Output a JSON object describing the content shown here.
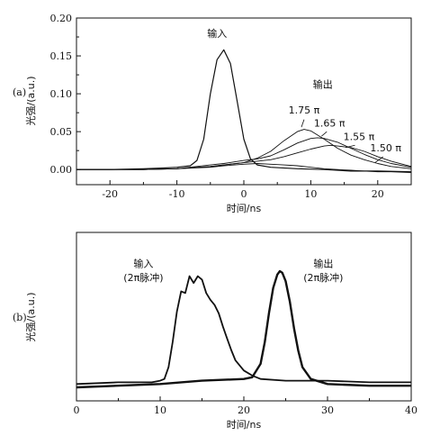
{
  "chart_data": [
    {
      "type": "line",
      "panel_label": "(a)",
      "xlabel": "时间/ns",
      "ylabel": "光强/(a.u.)",
      "xlim": [
        -25,
        25
      ],
      "ylim": [
        -0.02,
        0.2
      ],
      "xticks": [
        -20,
        -10,
        0,
        10,
        20
      ],
      "yticks": [
        0.0,
        0.05,
        0.1,
        0.15,
        0.2
      ],
      "ytick_labels": [
        "0.00",
        "0.05",
        "0.10",
        "0.15",
        "0.20"
      ],
      "grid": false,
      "annotations": [
        {
          "text": "输入",
          "x": -4.0,
          "y": 0.175
        },
        {
          "text": "输出",
          "x": 11.8,
          "y": 0.108
        },
        {
          "text": "1.75 π",
          "x": 9.0,
          "y": 0.074
        },
        {
          "text": "1.65 π",
          "x": 12.8,
          "y": 0.057
        },
        {
          "text": "1.55 π",
          "x": 17.2,
          "y": 0.039
        },
        {
          "text": "1.50 π",
          "x": 21.2,
          "y": 0.024
        }
      ],
      "series": [
        {
          "name": "输入",
          "x": [
            -25,
            -20,
            -15,
            -12,
            -10,
            -8,
            -7,
            -6,
            -5,
            -4,
            -3,
            -2,
            -1,
            0,
            1,
            2,
            4,
            8,
            12,
            16,
            20,
            25
          ],
          "y": [
            0.0,
            0.0,
            0.001,
            0.002,
            0.003,
            0.005,
            0.012,
            0.04,
            0.1,
            0.145,
            0.158,
            0.14,
            0.09,
            0.04,
            0.014,
            0.006,
            0.003,
            0.001,
            0.0,
            -0.002,
            -0.002,
            -0.003
          ]
        },
        {
          "name": "1.75 π",
          "x": [
            -25,
            -15,
            -10,
            -5,
            -3,
            0,
            2,
            4,
            6,
            8,
            9,
            10,
            12,
            14,
            16,
            18,
            20,
            22,
            25
          ],
          "y": [
            0.0,
            0.0,
            0.001,
            0.004,
            0.006,
            0.009,
            0.015,
            0.024,
            0.038,
            0.05,
            0.053,
            0.051,
            0.04,
            0.028,
            0.019,
            0.013,
            0.008,
            0.004,
            0.001
          ]
        },
        {
          "name": "1.65 π",
          "x": [
            -25,
            -15,
            -10,
            -5,
            -3,
            0,
            2,
            4,
            6,
            8,
            10,
            11,
            12,
            14,
            16,
            18,
            20,
            22,
            25
          ],
          "y": [
            0.0,
            0.0,
            0.001,
            0.006,
            0.008,
            0.012,
            0.014,
            0.018,
            0.026,
            0.035,
            0.041,
            0.042,
            0.041,
            0.036,
            0.028,
            0.02,
            0.013,
            0.008,
            0.003
          ]
        },
        {
          "name": "1.55 π",
          "x": [
            -25,
            -15,
            -10,
            -5,
            -3,
            0,
            2,
            4,
            6,
            8,
            10,
            12,
            13,
            14,
            16,
            18,
            20,
            22,
            25
          ],
          "y": [
            0.0,
            0.0,
            0.001,
            0.004,
            0.006,
            0.009,
            0.011,
            0.013,
            0.017,
            0.022,
            0.027,
            0.031,
            0.032,
            0.031,
            0.029,
            0.024,
            0.017,
            0.011,
            0.004
          ]
        },
        {
          "name": "1.50 π",
          "x": [
            -25,
            -15,
            -10,
            -5,
            -3,
            0,
            2,
            4,
            6,
            8,
            10,
            12,
            14,
            16,
            18,
            20,
            22,
            25
          ],
          "y": [
            0.0,
            0.0,
            0.001,
            0.003,
            0.005,
            0.007,
            0.008,
            0.007,
            0.006,
            0.005,
            0.003,
            0.001,
            0.0,
            -0.001,
            -0.002,
            -0.003,
            -0.003,
            -0.004
          ]
        }
      ]
    },
    {
      "type": "line",
      "panel_label": "(b)",
      "xlabel": "时间/ns",
      "ylabel": "光强/(a.u.)",
      "xlim": [
        0,
        40
      ],
      "ylim": [
        0,
        1
      ],
      "xticks": [
        0,
        10,
        20,
        30,
        40
      ],
      "yticks": [],
      "grid": false,
      "annotations": [
        {
          "text": "输入",
          "x": 8.0,
          "y": 0.795
        },
        {
          "text": "(2π脉冲)",
          "x": 8.0,
          "y": 0.71
        },
        {
          "text": "输出",
          "x": 29.5,
          "y": 0.795
        },
        {
          "text": "(2π脉冲)",
          "x": 29.5,
          "y": 0.71
        }
      ],
      "series": [
        {
          "name": "输入",
          "x": [
            0,
            5,
            9,
            10,
            10.5,
            11,
            11.5,
            12,
            12.5,
            13,
            13.5,
            14,
            14.5,
            15,
            15.5,
            16,
            16.5,
            17,
            17.5,
            18,
            18.5,
            19,
            20,
            21,
            22,
            25,
            30,
            35,
            40
          ],
          "y": [
            0.1,
            0.11,
            0.11,
            0.12,
            0.13,
            0.2,
            0.35,
            0.53,
            0.65,
            0.64,
            0.74,
            0.7,
            0.74,
            0.72,
            0.64,
            0.6,
            0.57,
            0.52,
            0.44,
            0.37,
            0.3,
            0.24,
            0.18,
            0.15,
            0.13,
            0.12,
            0.12,
            0.11,
            0.11
          ]
        },
        {
          "name": "输出",
          "x": [
            0,
            10,
            15,
            20,
            21,
            22,
            22.5,
            23,
            23.5,
            24,
            24.3,
            24.6,
            25,
            25.5,
            26,
            26.5,
            27,
            28,
            30,
            35,
            40
          ],
          "y": [
            0.08,
            0.1,
            0.12,
            0.13,
            0.14,
            0.22,
            0.35,
            0.52,
            0.67,
            0.75,
            0.77,
            0.76,
            0.71,
            0.59,
            0.43,
            0.3,
            0.2,
            0.13,
            0.1,
            0.09,
            0.09
          ]
        }
      ]
    }
  ]
}
